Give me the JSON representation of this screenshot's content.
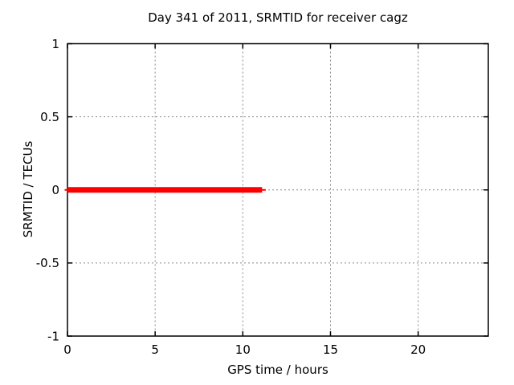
{
  "page": {
    "background": "#ffffff"
  },
  "chart_data": {
    "type": "line",
    "title": "Day 341 of 2011, SRMTID for receiver cagz",
    "xlabel": "GPS time / hours",
    "ylabel": "SRMTID / TECUs",
    "xlim": [
      0,
      24
    ],
    "ylim": [
      -1,
      1
    ],
    "xticks": [
      0,
      5,
      10,
      15,
      20
    ],
    "yticks": [
      1,
      0.5,
      0,
      -0.5,
      -1
    ],
    "xtick_labels": [
      "0",
      "5",
      "10",
      "15",
      "20"
    ],
    "ytick_labels": [
      "1",
      "0.5",
      "0",
      "-0.5",
      "-1"
    ],
    "grid": true,
    "grid_style": "dashed",
    "legend": false,
    "axis_color": "#000000",
    "grid_color": "#888888",
    "text_color": "#000000",
    "series": [
      {
        "color": "#ff0000",
        "y_value": 0,
        "x_start": 0,
        "x_end": 11.1,
        "description": "thick horizontal red segment at SRMTID = 0 from 0 to about 11.1 hours"
      }
    ]
  }
}
